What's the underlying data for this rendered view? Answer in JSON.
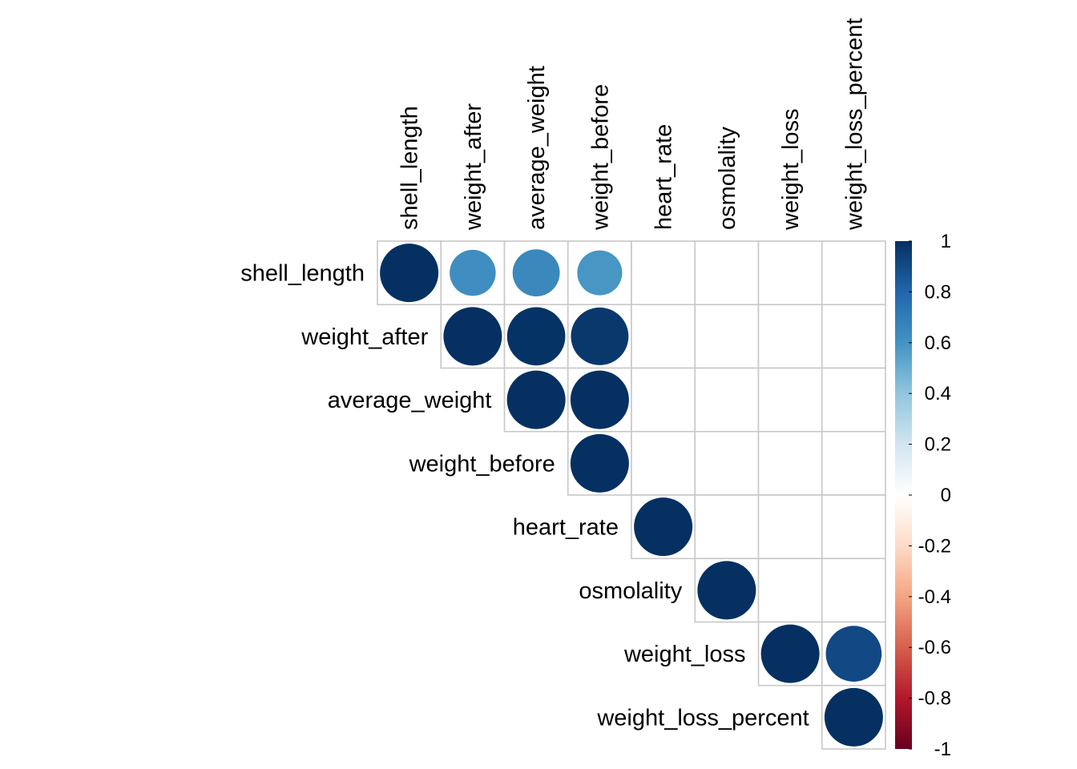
{
  "chart_data": {
    "type": "heatmap",
    "method": "circle",
    "layout": "upper-triangle",
    "variables": [
      "shell_length",
      "weight_after",
      "average_weight",
      "weight_before",
      "heart_rate",
      "osmolality",
      "weight_loss",
      "weight_loss_percent"
    ],
    "cells": [
      {
        "row": 0,
        "col": 0,
        "value": 1.0
      },
      {
        "row": 0,
        "col": 1,
        "value": 0.62
      },
      {
        "row": 0,
        "col": 2,
        "value": 0.65
      },
      {
        "row": 0,
        "col": 3,
        "value": 0.59
      },
      {
        "row": 1,
        "col": 1,
        "value": 1.0
      },
      {
        "row": 1,
        "col": 2,
        "value": 0.99
      },
      {
        "row": 1,
        "col": 3,
        "value": 0.97
      },
      {
        "row": 2,
        "col": 2,
        "value": 1.0
      },
      {
        "row": 2,
        "col": 3,
        "value": 1.0
      },
      {
        "row": 3,
        "col": 3,
        "value": 1.0
      },
      {
        "row": 4,
        "col": 4,
        "value": 1.0
      },
      {
        "row": 5,
        "col": 5,
        "value": 1.0
      },
      {
        "row": 6,
        "col": 6,
        "value": 1.0
      },
      {
        "row": 6,
        "col": 7,
        "value": 0.91
      },
      {
        "row": 7,
        "col": 7,
        "value": 1.0
      }
    ],
    "colorbar": {
      "ticks": [
        "1",
        "0.8",
        "0.6",
        "0.4",
        "0.2",
        "0",
        "-0.2",
        "-0.4",
        "-0.6",
        "-0.8",
        "-1"
      ],
      "range": [
        -1,
        1
      ],
      "colors": [
        "#67001F",
        "#B2182B",
        "#D6604D",
        "#F4A582",
        "#FDDBC7",
        "#FFFFFF",
        "#D1E5F0",
        "#92C5DE",
        "#4393C3",
        "#2166AC",
        "#053061"
      ]
    },
    "grid_color": "#c8c8c8"
  }
}
